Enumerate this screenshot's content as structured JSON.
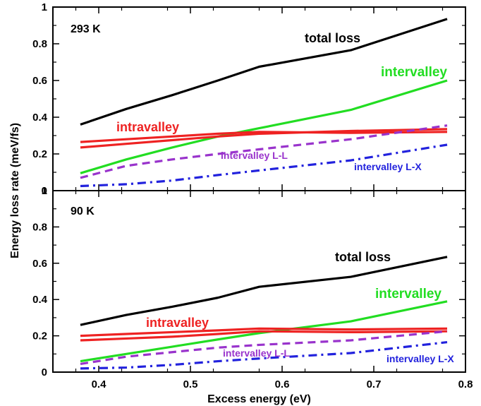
{
  "chart_data": [
    {
      "type": "line",
      "panel_label": "293 K",
      "xlabel": "Excess energy (eV)",
      "ylabel": "Energy loss rate (meV/fs)",
      "xlim": [
        0.35,
        0.8
      ],
      "ylim": [
        0,
        1
      ],
      "x_ticks": [
        "0.4",
        "0.5",
        "0.6",
        "0.7",
        "0.8"
      ],
      "y_ticks": [
        "0",
        "0.2",
        "0.4",
        "0.6",
        "0.8",
        "1"
      ],
      "series": [
        {
          "name": "total loss",
          "color": "#000000",
          "style": "solid",
          "x": [
            0.38,
            0.43,
            0.48,
            0.53,
            0.575,
            0.675,
            0.78
          ],
          "y": [
            0.36,
            0.445,
            0.52,
            0.6,
            0.675,
            0.765,
            0.935
          ]
        },
        {
          "name": "intervalley",
          "color": "#22dd22",
          "style": "solid",
          "x": [
            0.38,
            0.43,
            0.48,
            0.53,
            0.575,
            0.675,
            0.78
          ],
          "y": [
            0.095,
            0.17,
            0.235,
            0.295,
            0.34,
            0.44,
            0.6
          ]
        },
        {
          "name": "intravalley",
          "color": "#ee2222",
          "style": "solid",
          "x": [
            0.38,
            0.43,
            0.48,
            0.53,
            0.575,
            0.675,
            0.78
          ],
          "y": [
            0.265,
            0.28,
            0.295,
            0.31,
            0.32,
            0.315,
            0.32
          ]
        },
        {
          "name": "",
          "color": "#ee2222",
          "style": "solid",
          "x": [
            0.38,
            0.43,
            0.48,
            0.53,
            0.575,
            0.675,
            0.78
          ],
          "y": [
            0.235,
            0.255,
            0.275,
            0.295,
            0.31,
            0.325,
            0.335
          ]
        },
        {
          "name": "intervalley L-L",
          "color": "#9933cc",
          "style": "dashed",
          "x": [
            0.38,
            0.43,
            0.48,
            0.53,
            0.575,
            0.675,
            0.78
          ],
          "y": [
            0.07,
            0.135,
            0.17,
            0.2,
            0.225,
            0.28,
            0.355
          ]
        },
        {
          "name": "intervalley L-X",
          "color": "#2222dd",
          "style": "dashdot",
          "x": [
            0.38,
            0.43,
            0.48,
            0.53,
            0.575,
            0.675,
            0.78
          ],
          "y": [
            0.025,
            0.035,
            0.055,
            0.085,
            0.11,
            0.165,
            0.25
          ]
        }
      ]
    },
    {
      "type": "line",
      "panel_label": "90 K",
      "xlabel": "Excess energy (eV)",
      "ylabel": "Energy loss rate (meV/fs)",
      "xlim": [
        0.35,
        0.8
      ],
      "ylim": [
        0,
        1
      ],
      "x_ticks": [
        "0.4",
        "0.5",
        "0.6",
        "0.7",
        "0.8"
      ],
      "y_ticks": [
        "0",
        "0.2",
        "0.4",
        "0.6",
        "0.8",
        "1"
      ],
      "series": [
        {
          "name": "total loss",
          "color": "#000000",
          "style": "solid",
          "x": [
            0.38,
            0.43,
            0.48,
            0.53,
            0.575,
            0.675,
            0.78
          ],
          "y": [
            0.26,
            0.315,
            0.36,
            0.41,
            0.47,
            0.525,
            0.635
          ]
        },
        {
          "name": "intervalley",
          "color": "#22dd22",
          "style": "solid",
          "x": [
            0.38,
            0.43,
            0.48,
            0.53,
            0.575,
            0.675,
            0.78
          ],
          "y": [
            0.06,
            0.1,
            0.14,
            0.18,
            0.215,
            0.28,
            0.39
          ]
        },
        {
          "name": "intravalley",
          "color": "#ee2222",
          "style": "solid",
          "x": [
            0.38,
            0.43,
            0.48,
            0.53,
            0.575,
            0.675,
            0.78
          ],
          "y": [
            0.2,
            0.21,
            0.22,
            0.23,
            0.24,
            0.235,
            0.24
          ]
        },
        {
          "name": "",
          "color": "#ee2222",
          "style": "solid",
          "x": [
            0.38,
            0.43,
            0.48,
            0.53,
            0.575,
            0.675,
            0.78
          ],
          "y": [
            0.175,
            0.185,
            0.195,
            0.21,
            0.225,
            0.22,
            0.225
          ]
        },
        {
          "name": "intervalley L-L",
          "color": "#9933cc",
          "style": "dashed",
          "x": [
            0.38,
            0.43,
            0.48,
            0.53,
            0.575,
            0.675,
            0.78
          ],
          "y": [
            0.045,
            0.085,
            0.11,
            0.135,
            0.15,
            0.175,
            0.225
          ]
        },
        {
          "name": "intervalley L-X",
          "color": "#2222dd",
          "style": "dashdot",
          "x": [
            0.38,
            0.43,
            0.48,
            0.53,
            0.575,
            0.675,
            0.78
          ],
          "y": [
            0.02,
            0.025,
            0.04,
            0.06,
            0.075,
            0.105,
            0.165
          ]
        }
      ]
    }
  ]
}
